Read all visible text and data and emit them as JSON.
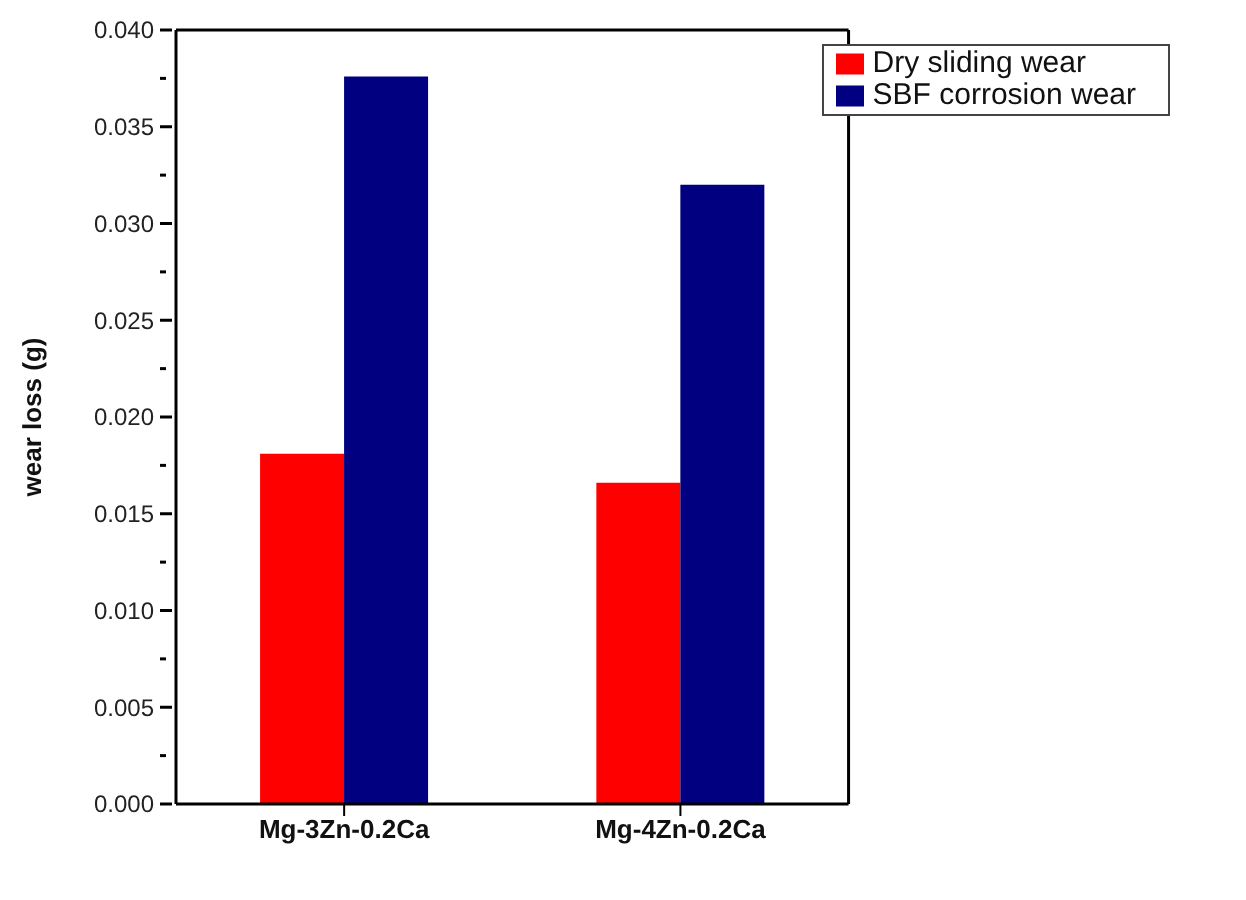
{
  "chart_data": {
    "type": "bar",
    "ylabel": "wear loss (g)",
    "categories": [
      "Mg-3Zn-0.2Ca",
      "Mg-4Zn-0.2Ca"
    ],
    "series": [
      {
        "name": "Dry sliding wear",
        "color": "#ff0000",
        "values": [
          0.0181,
          0.0166
        ]
      },
      {
        "name": "SBF corrosion wear",
        "color": "#000080",
        "values": [
          0.0376,
          0.032
        ]
      }
    ],
    "ylim": [
      0,
      0.04
    ],
    "yticks": [
      {
        "value": 0,
        "label": "0.000"
      },
      {
        "value": 0.0025,
        "label": null
      },
      {
        "value": 0.005,
        "label": "0.005"
      },
      {
        "value": 0.0075,
        "label": null
      },
      {
        "value": 0.01,
        "label": "0.010"
      },
      {
        "value": 0.0125,
        "label": null
      },
      {
        "value": 0.015,
        "label": "0.015"
      },
      {
        "value": 0.0175,
        "label": null
      },
      {
        "value": 0.02,
        "label": "0.020"
      },
      {
        "value": 0.0225,
        "label": null
      },
      {
        "value": 0.025,
        "label": "0.025"
      },
      {
        "value": 0.0275,
        "label": null
      },
      {
        "value": 0.03,
        "label": "0.030"
      },
      {
        "value": 0.0325,
        "label": null
      },
      {
        "value": 0.035,
        "label": "0.035"
      },
      {
        "value": 0.0375,
        "label": null
      },
      {
        "value": 0.04,
        "label": "0.040"
      }
    ],
    "grid": false,
    "legend": "top right"
  }
}
